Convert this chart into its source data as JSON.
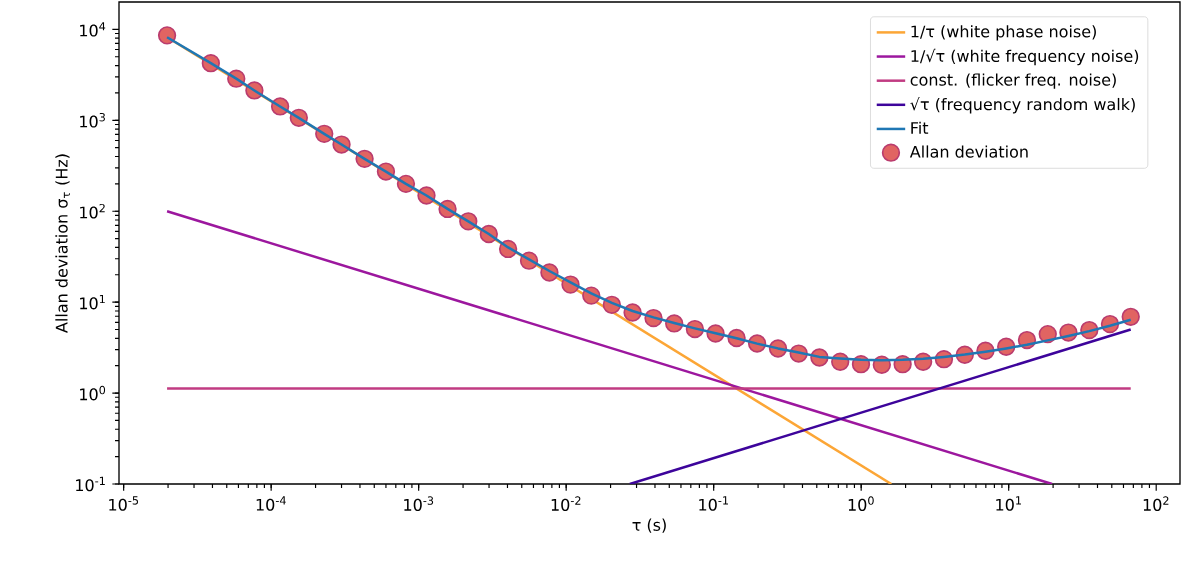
{
  "chart_data": {
    "type": "line",
    "xlabel": "τ (s)",
    "ylabel": "Allan deviation σ$_{τ}$ (Hz)",
    "log": "xy",
    "xlim": [
      9.3e-06,
      145
    ],
    "ylim": [
      0.1,
      20000
    ],
    "xticks": [
      {
        "value": 1e-05,
        "label": "10$^{-5}$"
      },
      {
        "value": 0.0001,
        "label": "10$^{-4}$"
      },
      {
        "value": 0.001,
        "label": "10$^{-3}$"
      },
      {
        "value": 0.01,
        "label": "10$^{-2}$"
      },
      {
        "value": 0.1,
        "label": "10$^{-1}$"
      },
      {
        "value": 1,
        "label": "10$^{0}$"
      },
      {
        "value": 10,
        "label": "10$^{1}$"
      },
      {
        "value": 100,
        "label": "10$^{2}$"
      }
    ],
    "yticks": [
      {
        "value": 0.1,
        "label": "10$^{-1}$"
      },
      {
        "value": 1,
        "label": "10$^{0}$"
      },
      {
        "value": 10,
        "label": "10$^{1}$"
      },
      {
        "value": 100,
        "label": "10$^{2}$"
      },
      {
        "value": 1000,
        "label": "10$^{3}$"
      },
      {
        "value": 10000,
        "label": "10$^{4}$"
      }
    ],
    "legend": "top right",
    "line_style": "solid",
    "series": [
      {
        "name": "1/τ (white phase noise)",
        "color": "#fca636",
        "x": [
          1.97e-05,
          1.6
        ],
        "values": [
          8200,
          0.1
        ]
      },
      {
        "name": "1/√τ (white frequency noise)",
        "color": "#9c179e",
        "x": [
          1.97e-05,
          19.7
        ],
        "values": [
          100,
          0.1
        ]
      },
      {
        "name": "const. (flicker freq. noise)",
        "color": "#c13b82",
        "x": [
          1.97e-05,
          67.2
        ],
        "values": [
          1.12,
          1.12
        ]
      },
      {
        "name": "√τ (frequency random walk)",
        "color": "#3d049b",
        "x": [
          0.027,
          67.2
        ],
        "values": [
          0.1,
          5.0
        ]
      },
      {
        "name": "Fit",
        "color": "#1f77b4",
        "x": [
          1.97e-05,
          3.9e-05,
          5.8e-05,
          7.7e-05,
          0.000115,
          0.000154,
          0.000229,
          0.0003,
          0.00043,
          0.0006,
          0.00082,
          0.00113,
          0.00157,
          0.00217,
          0.00299,
          0.00404,
          0.0056,
          0.0077,
          0.0107,
          0.0148,
          0.0204,
          0.0282,
          0.0391,
          0.054,
          0.0746,
          0.103,
          0.143,
          0.197,
          0.273,
          0.377,
          0.521,
          0.721,
          0.997,
          1.38,
          1.91,
          2.63,
          3.64,
          5.04,
          6.96,
          9.62,
          13.3,
          18.4,
          25.4,
          35.2,
          48.6,
          67.2
        ],
        "values": [
          8200,
          4250,
          2870,
          2130,
          1420,
          1065,
          710,
          541,
          377,
          273,
          200,
          149,
          106,
          77.4,
          56.2,
          40,
          29.5,
          22,
          16.5,
          12.5,
          9.8,
          8,
          6.8,
          5.9,
          5.15,
          4.55,
          4.0,
          3.5,
          3.1,
          2.8,
          2.5,
          2.4,
          2.33,
          2.3,
          2.32,
          2.38,
          2.5,
          2.65,
          2.85,
          3.1,
          3.4,
          3.8,
          4.25,
          4.8,
          5.5,
          6.4
        ]
      },
      {
        "name": "Allan deviation",
        "color": "#e16462",
        "type": "scatter",
        "marker": "circle",
        "x": [
          1.97e-05,
          3.9e-05,
          5.8e-05,
          7.7e-05,
          0.000115,
          0.000154,
          0.000229,
          0.0003,
          0.00043,
          0.0006,
          0.00082,
          0.00113,
          0.00157,
          0.00217,
          0.00299,
          0.00404,
          0.0056,
          0.0077,
          0.0107,
          0.0148,
          0.0204,
          0.0282,
          0.0391,
          0.054,
          0.0746,
          0.103,
          0.143,
          0.197,
          0.273,
          0.377,
          0.521,
          0.721,
          0.997,
          1.38,
          1.91,
          2.63,
          3.64,
          5.04,
          6.96,
          9.62,
          13.3,
          18.4,
          25.4,
          35.2,
          48.6,
          67.2
        ],
        "values": [
          8590,
          4250,
          2870,
          2130,
          1420,
          1065,
          710,
          541,
          377,
          273,
          200,
          149,
          106,
          77.4,
          56.2,
          38.5,
          28.6,
          21.2,
          15.6,
          11.8,
          9.35,
          7.7,
          6.68,
          5.83,
          5.06,
          4.52,
          4.03,
          3.51,
          3.09,
          2.72,
          2.46,
          2.21,
          2.08,
          2.05,
          2.08,
          2.21,
          2.36,
          2.64,
          2.92,
          3.23,
          3.83,
          4.45,
          4.63,
          4.93,
          5.74,
          6.9
        ]
      }
    ]
  }
}
